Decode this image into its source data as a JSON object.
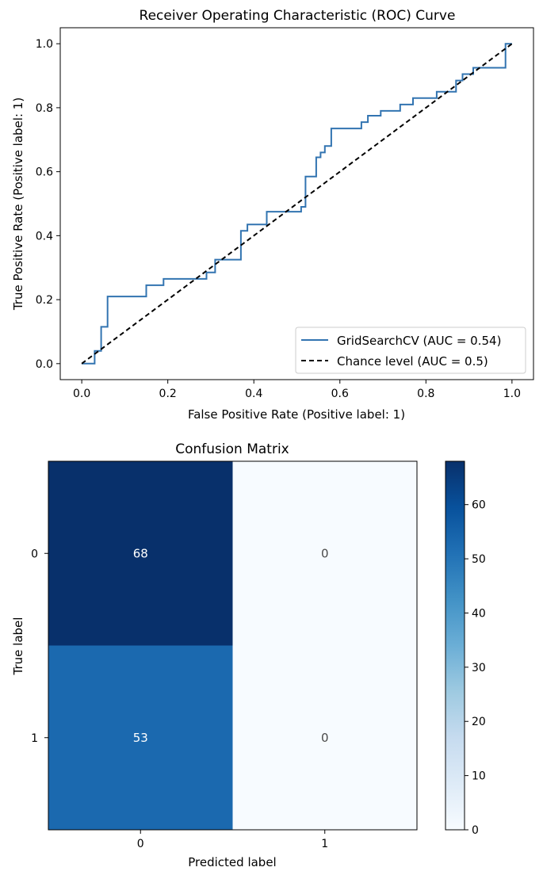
{
  "chart_data": [
    {
      "type": "line",
      "title": "Receiver Operating Characteristic (ROC) Curve",
      "xlabel": "False Positive Rate (Positive label: 1)",
      "ylabel": "True Positive Rate (Positive label: 1)",
      "xlim": [
        -0.05,
        1.05
      ],
      "ylim": [
        -0.05,
        1.05
      ],
      "xticks": [
        "0.0",
        "0.2",
        "0.4",
        "0.6",
        "0.8",
        "1.0"
      ],
      "yticks": [
        "0.0",
        "0.2",
        "0.4",
        "0.6",
        "0.8",
        "1.0"
      ],
      "grid": false,
      "legend_position": "lower-right",
      "series": [
        {
          "name": "GridSearchCV (AUC = 0.54)",
          "color": "#3274b1",
          "style": "solid",
          "step": true,
          "x": [
            0.0,
            0.0,
            0.03,
            0.03,
            0.045,
            0.045,
            0.06,
            0.06,
            0.15,
            0.15,
            0.19,
            0.19,
            0.29,
            0.29,
            0.31,
            0.31,
            0.37,
            0.37,
            0.385,
            0.385,
            0.43,
            0.43,
            0.51,
            0.51,
            0.52,
            0.52,
            0.545,
            0.545,
            0.555,
            0.555,
            0.565,
            0.565,
            0.58,
            0.58,
            0.65,
            0.65,
            0.665,
            0.665,
            0.695,
            0.695,
            0.74,
            0.74,
            0.77,
            0.77,
            0.825,
            0.825,
            0.87,
            0.87,
            0.885,
            0.885,
            0.91,
            0.91,
            0.985,
            0.985,
            1.0
          ],
          "y": [
            0.0,
            0.0,
            0.0,
            0.04,
            0.04,
            0.115,
            0.115,
            0.21,
            0.21,
            0.245,
            0.245,
            0.265,
            0.265,
            0.285,
            0.285,
            0.325,
            0.325,
            0.415,
            0.415,
            0.435,
            0.435,
            0.475,
            0.475,
            0.49,
            0.49,
            0.585,
            0.585,
            0.645,
            0.645,
            0.66,
            0.66,
            0.68,
            0.68,
            0.735,
            0.735,
            0.755,
            0.755,
            0.775,
            0.775,
            0.79,
            0.79,
            0.81,
            0.81,
            0.83,
            0.83,
            0.85,
            0.85,
            0.885,
            0.885,
            0.905,
            0.905,
            0.925,
            0.925,
            1.0,
            1.0
          ]
        },
        {
          "name": "Chance level (AUC = 0.5)",
          "color": "#000000",
          "style": "dashed",
          "x": [
            0.0,
            1.0
          ],
          "y": [
            0.0,
            1.0
          ]
        }
      ]
    },
    {
      "type": "heatmap",
      "title": "Confusion Matrix",
      "xlabel": "Predicted label",
      "ylabel": "True label",
      "x_categories": [
        "0",
        "1"
      ],
      "y_categories": [
        "0",
        "1"
      ],
      "values": [
        [
          68,
          0
        ],
        [
          53,
          0
        ]
      ],
      "colormap": "Blues",
      "colorbar": {
        "min": 0,
        "max": 68,
        "ticks": [
          "0",
          "10",
          "20",
          "30",
          "40",
          "50",
          "60"
        ],
        "low_color": "#f7fbff",
        "high_color": "#08306b"
      }
    }
  ]
}
